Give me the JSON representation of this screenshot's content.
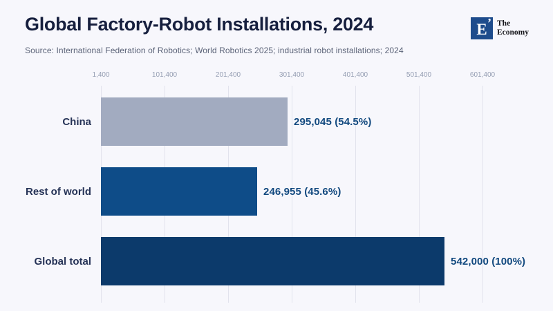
{
  "header": {
    "title": "Global Factory-Robot Installations, 2024",
    "source": "Source: International Federation of Robotics; World Robotics 2025; industrial robot installations; 2024",
    "logo": {
      "mark_letter": "E",
      "mark_quote": "’",
      "name_line1": "The",
      "name_line2": "Economy",
      "square_color": "#1e4c8c"
    }
  },
  "chart_data": {
    "type": "bar",
    "orientation": "horizontal",
    "title": "Global Factory-Robot Installations, 2024",
    "categories": [
      "China",
      "Rest of world",
      "Global total"
    ],
    "values": [
      295045,
      246955,
      542000
    ],
    "value_labels": [
      "295,045 (54.5%)",
      "246,955 (45.6%)",
      "542,000 (100%)"
    ],
    "bar_colors": [
      "#a2abc0",
      "#0e4c88",
      "#0c3a6b"
    ],
    "x_axis": {
      "min": 1400,
      "max": 601400,
      "ticks": [
        1400,
        101400,
        201400,
        301400,
        401400,
        501400,
        601400
      ],
      "tick_labels": [
        "1,400",
        "101,400",
        "201,400",
        "301,400",
        "401,400",
        "501,400",
        "601,400"
      ]
    },
    "grid": true,
    "legend": false,
    "colors": {
      "background": "#f7f7fc",
      "title_text": "#161f3e",
      "source_text": "#5a6277",
      "tick_text": "#949db2",
      "gridline": "#e2e3ed",
      "category_text": "#263357",
      "value_text": "#12497f"
    }
  }
}
